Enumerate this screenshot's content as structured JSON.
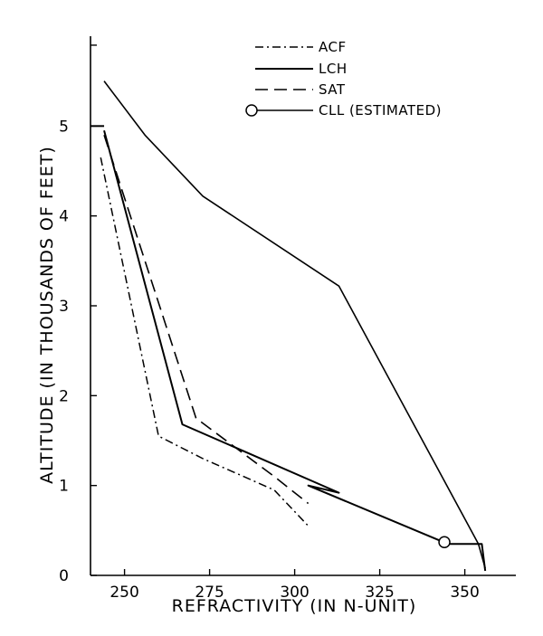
{
  "chart_data": {
    "type": "line",
    "title": "",
    "xlabel": "REFRACTIVITY (IN N-UNIT)",
    "ylabel": "ALTITUDE (IN THOUSANDS OF FEET)",
    "xlim": [
      240,
      365
    ],
    "ylim": [
      0,
      6
    ],
    "xticks": [
      250,
      275,
      300,
      325,
      350
    ],
    "yticks": [
      0,
      1,
      2,
      3,
      4,
      5
    ],
    "grid": false,
    "legend_position": "top-center",
    "series": [
      {
        "name": "ACF",
        "style": "dash-dot",
        "x": [
          243,
          260,
          273,
          294,
          304
        ],
        "y": [
          4.65,
          1.55,
          1.3,
          0.95,
          0.55
        ]
      },
      {
        "name": "LCH",
        "style": "solid",
        "x": [
          244,
          267,
          313,
          304,
          345,
          355,
          356
        ],
        "y": [
          4.95,
          1.68,
          0.92,
          1.0,
          0.35,
          0.35,
          0.05
        ],
        "note_points": []
      },
      {
        "name": "SAT",
        "style": "dashed",
        "x": [
          244,
          271,
          294,
          304
        ],
        "y": [
          4.9,
          1.75,
          1.1,
          0.8
        ]
      },
      {
        "name": "CLL",
        "legend_label": "CLL    (ESTIMATED)",
        "style": "solid-circle-end",
        "x": [
          244,
          256,
          273,
          313,
          354,
          356
        ],
        "y": [
          5.5,
          4.9,
          4.22,
          3.22,
          0.35,
          0.08
        ]
      }
    ],
    "extra_segments": {
      "lch_top": {
        "x": [
          240,
          244
        ],
        "y": [
          5.0,
          5.0
        ]
      }
    }
  }
}
